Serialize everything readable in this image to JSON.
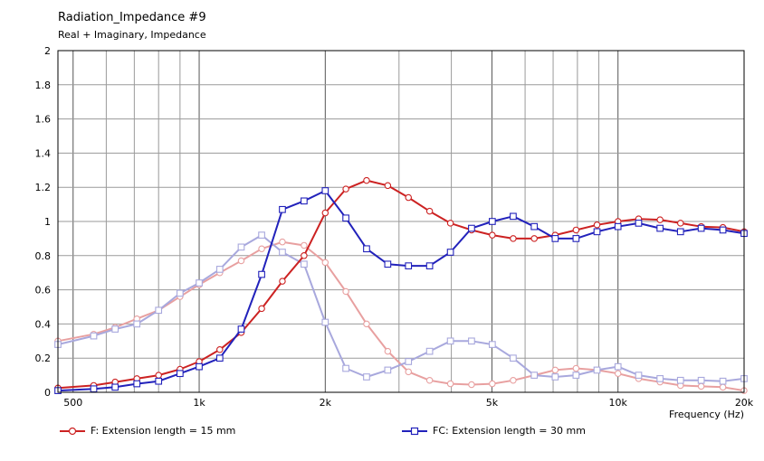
{
  "title": "Radiation_Impedance #9",
  "subtitle": "Real + Imaginary, Impedance",
  "chart_data": {
    "type": "line",
    "title": "Radiation_Impedance #9",
    "subtitle": "Real + Imaginary, Impedance",
    "xlabel": "Frequency  (Hz)",
    "ylabel": "",
    "xscale": "log",
    "xlim": [
      460,
      20000
    ],
    "ylim": [
      0,
      2
    ],
    "x_ticks": [
      500,
      1000,
      2000,
      5000,
      10000,
      20000
    ],
    "x_tick_labels": [
      "500",
      "1k",
      "2k",
      "5k",
      "10k",
      "20k"
    ],
    "y_ticks": [
      0,
      0.2,
      0.4,
      0.6,
      0.8,
      1,
      1.2,
      1.4,
      1.6,
      1.8,
      2
    ],
    "y_tick_labels": [
      "0",
      "0.2",
      "0.4",
      "0.6",
      "0.8",
      "1",
      "1.2",
      "1.4",
      "1.6",
      "1.8",
      "2"
    ],
    "grid": true,
    "legend_position": "bottom",
    "series": [
      {
        "name": "F: Extension length = 15 mm",
        "part": "real",
        "color": "#cc2222",
        "marker": "circle",
        "points": [
          [
            460,
            0.025
          ],
          [
            560,
            0.04
          ],
          [
            630,
            0.06
          ],
          [
            710,
            0.08
          ],
          [
            800,
            0.1
          ],
          [
            900,
            0.135
          ],
          [
            1000,
            0.18
          ],
          [
            1120,
            0.25
          ],
          [
            1260,
            0.35
          ],
          [
            1410,
            0.49
          ],
          [
            1580,
            0.65
          ],
          [
            1780,
            0.8
          ],
          [
            2000,
            1.05
          ],
          [
            2240,
            1.19
          ],
          [
            2510,
            1.24
          ],
          [
            2820,
            1.21
          ],
          [
            3160,
            1.14
          ],
          [
            3550,
            1.06
          ],
          [
            3980,
            0.99
          ],
          [
            4470,
            0.95
          ],
          [
            5010,
            0.92
          ],
          [
            5620,
            0.9
          ],
          [
            6310,
            0.9
          ],
          [
            7080,
            0.92
          ],
          [
            7940,
            0.95
          ],
          [
            8910,
            0.98
          ],
          [
            10000,
            1.0
          ],
          [
            11200,
            1.015
          ],
          [
            12600,
            1.01
          ],
          [
            14100,
            0.99
          ],
          [
            15800,
            0.97
          ],
          [
            17800,
            0.965
          ],
          [
            20000,
            0.94
          ]
        ]
      },
      {
        "name": "F: Extension length = 15 mm",
        "part": "imaginary",
        "color": "#e8a0a0",
        "marker": "circle",
        "points": [
          [
            460,
            0.3
          ],
          [
            560,
            0.34
          ],
          [
            630,
            0.38
          ],
          [
            710,
            0.43
          ],
          [
            800,
            0.48
          ],
          [
            900,
            0.56
          ],
          [
            1000,
            0.63
          ],
          [
            1120,
            0.7
          ],
          [
            1260,
            0.77
          ],
          [
            1410,
            0.84
          ],
          [
            1580,
            0.88
          ],
          [
            1780,
            0.86
          ],
          [
            2000,
            0.76
          ],
          [
            2240,
            0.59
          ],
          [
            2510,
            0.4
          ],
          [
            2820,
            0.24
          ],
          [
            3160,
            0.12
          ],
          [
            3550,
            0.07
          ],
          [
            3980,
            0.05
          ],
          [
            4470,
            0.045
          ],
          [
            5010,
            0.05
          ],
          [
            5620,
            0.07
          ],
          [
            6310,
            0.1
          ],
          [
            7080,
            0.13
          ],
          [
            7940,
            0.14
          ],
          [
            8910,
            0.13
          ],
          [
            10000,
            0.11
          ],
          [
            11200,
            0.08
          ],
          [
            12600,
            0.06
          ],
          [
            14100,
            0.04
          ],
          [
            15800,
            0.035
          ],
          [
            17800,
            0.03
          ],
          [
            20000,
            0.01
          ]
        ]
      },
      {
        "name": "FC: Extension length = 30 mm",
        "part": "real",
        "color": "#2222bb",
        "marker": "square",
        "points": [
          [
            460,
            0.01
          ],
          [
            560,
            0.02
          ],
          [
            630,
            0.03
          ],
          [
            710,
            0.05
          ],
          [
            800,
            0.065
          ],
          [
            900,
            0.11
          ],
          [
            1000,
            0.15
          ],
          [
            1120,
            0.2
          ],
          [
            1260,
            0.37
          ],
          [
            1410,
            0.69
          ],
          [
            1580,
            1.07
          ],
          [
            1780,
            1.12
          ],
          [
            2000,
            1.18
          ],
          [
            2240,
            1.02
          ],
          [
            2510,
            0.84
          ],
          [
            2820,
            0.75
          ],
          [
            3160,
            0.74
          ],
          [
            3550,
            0.74
          ],
          [
            3980,
            0.82
          ],
          [
            4470,
            0.96
          ],
          [
            5010,
            1.0
          ],
          [
            5620,
            1.03
          ],
          [
            6310,
            0.97
          ],
          [
            7080,
            0.9
          ],
          [
            7940,
            0.9
          ],
          [
            8910,
            0.94
          ],
          [
            10000,
            0.97
          ],
          [
            11200,
            0.99
          ],
          [
            12600,
            0.96
          ],
          [
            14100,
            0.94
          ],
          [
            15800,
            0.96
          ],
          [
            17800,
            0.95
          ],
          [
            20000,
            0.93
          ]
        ]
      },
      {
        "name": "FC: Extension length = 30 mm",
        "part": "imaginary",
        "color": "#a8a8dd",
        "marker": "square",
        "points": [
          [
            460,
            0.28
          ],
          [
            560,
            0.33
          ],
          [
            630,
            0.37
          ],
          [
            710,
            0.4
          ],
          [
            800,
            0.48
          ],
          [
            900,
            0.58
          ],
          [
            1000,
            0.64
          ],
          [
            1120,
            0.72
          ],
          [
            1260,
            0.85
          ],
          [
            1410,
            0.92
          ],
          [
            1580,
            0.82
          ],
          [
            1780,
            0.75
          ],
          [
            2000,
            0.41
          ],
          [
            2240,
            0.14
          ],
          [
            2510,
            0.09
          ],
          [
            2820,
            0.13
          ],
          [
            3160,
            0.18
          ],
          [
            3550,
            0.24
          ],
          [
            3980,
            0.3
          ],
          [
            4470,
            0.3
          ],
          [
            5010,
            0.28
          ],
          [
            5620,
            0.2
          ],
          [
            6310,
            0.1
          ],
          [
            7080,
            0.09
          ],
          [
            7940,
            0.1
          ],
          [
            8910,
            0.13
          ],
          [
            10000,
            0.15
          ],
          [
            11200,
            0.1
          ],
          [
            12600,
            0.08
          ],
          [
            14100,
            0.07
          ],
          [
            15800,
            0.07
          ],
          [
            17800,
            0.065
          ],
          [
            20000,
            0.08
          ]
        ]
      }
    ]
  },
  "legend": [
    {
      "label": "F: Extension length = 15 mm",
      "color": "#cc2222",
      "marker": "circle"
    },
    {
      "label": "FC: Extension length = 30 mm",
      "color": "#2222bb",
      "marker": "square"
    }
  ]
}
